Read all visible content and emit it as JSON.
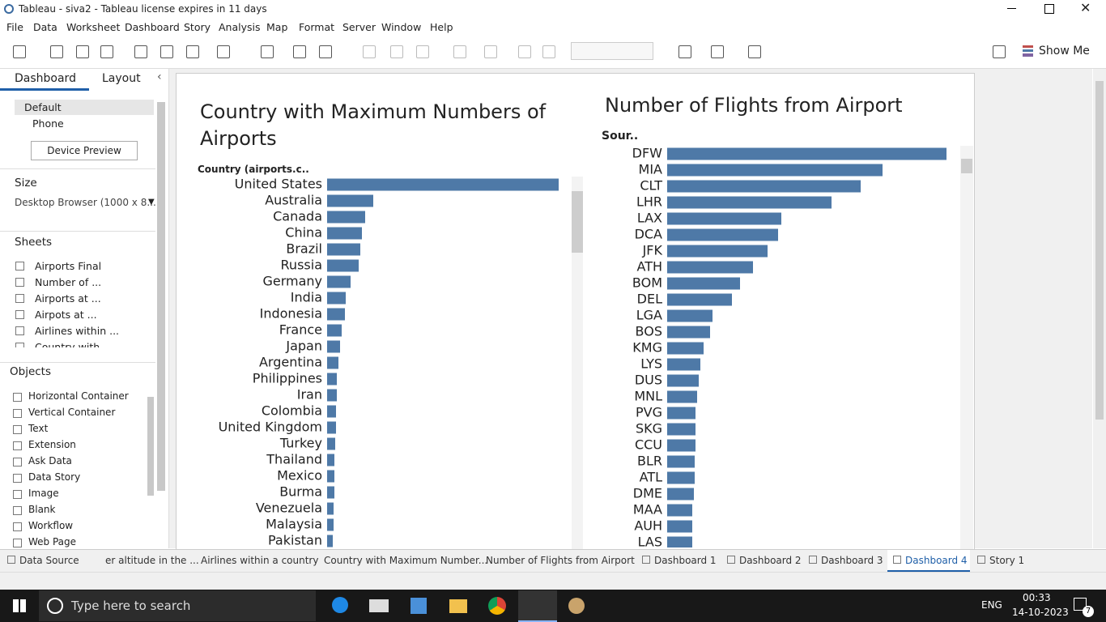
{
  "window_title": "Tableau - siva2 - Tableau license expires in 11 days",
  "menu": [
    "File",
    "Data",
    "Worksheet",
    "Dashboard",
    "Story",
    "Analysis",
    "Map",
    "Format",
    "Server",
    "Window",
    "Help"
  ],
  "toolbar": {
    "show_me": "Show Me"
  },
  "sidebar": {
    "tabs": [
      "Dashboard",
      "Layout"
    ],
    "devices": [
      "Default",
      "Phone"
    ],
    "device_preview": "Device Preview",
    "size_heading": "Size",
    "size_value": "Desktop Browser (1000 x 8...",
    "sheets_heading": "Sheets",
    "sheets": [
      "Airports Final",
      "Number of ...",
      "Airports at ...",
      "Airpots at ...",
      "Airlines within ...",
      "Country with"
    ],
    "objects_heading": "Objects",
    "objects": [
      "Horizontal Container",
      "Vertical Container",
      "Text",
      "Extension",
      "Ask Data",
      "Data Story",
      "Image",
      "Blank",
      "Workflow",
      "Web Page"
    ]
  },
  "chart_data": [
    {
      "type": "bar",
      "orientation": "horizontal",
      "title": "Country with Maximum Numbers of Airports",
      "y_label": "Country (airports.c..",
      "categories": [
        "United States",
        "Australia",
        "Canada",
        "China",
        "Brazil",
        "Russia",
        "Germany",
        "India",
        "Indonesia",
        "France",
        "Japan",
        "Argentina",
        "Philippines",
        "Iran",
        "Colombia",
        "United Kingdom",
        "Turkey",
        "Thailand",
        "Mexico",
        "Burma",
        "Venezuela",
        "Malaysia",
        "Pakistan"
      ],
      "values": [
        286,
        57,
        47,
        43,
        41,
        39,
        29,
        23,
        22,
        18,
        16,
        14,
        12,
        12,
        11,
        11,
        10,
        9,
        9,
        9,
        8,
        8,
        7
      ],
      "color": "#4e79a7",
      "xlim": [
        0,
        300
      ]
    },
    {
      "type": "bar",
      "orientation": "horizontal",
      "title": "Number of Flights from Airport",
      "y_label": "Sour..",
      "categories": [
        "DFW",
        "MIA",
        "CLT",
        "LHR",
        "LAX",
        "DCA",
        "JFK",
        "ATH",
        "BOM",
        "DEL",
        "LGA",
        "BOS",
        "KMG",
        "LYS",
        "DUS",
        "MNL",
        "PVG",
        "SKG",
        "CCU",
        "BLR",
        "ATL",
        "DME",
        "MAA",
        "AUH",
        "LAS"
      ],
      "values": [
        345,
        266,
        239,
        203,
        141,
        137,
        124,
        106,
        90,
        80,
        56,
        53,
        45,
        41,
        39,
        37,
        35,
        35,
        35,
        34,
        34,
        33,
        31,
        31,
        31
      ],
      "color": "#4e79a7",
      "xlim": [
        0,
        360
      ]
    }
  ],
  "tabs": [
    "Data Source",
    "er altitude in the ...",
    "Airlines within a country",
    "Country with Maximum Number...",
    "Number of Flights from Airport",
    "Dashboard 1",
    "Dashboard 2",
    "Dashboard 3",
    "Dashboard 4",
    "Story 1"
  ],
  "taskbar": {
    "search": "Type here to search",
    "language": "ENG",
    "time": "00:33",
    "date": "14-10-2023",
    "notifications": 7
  }
}
